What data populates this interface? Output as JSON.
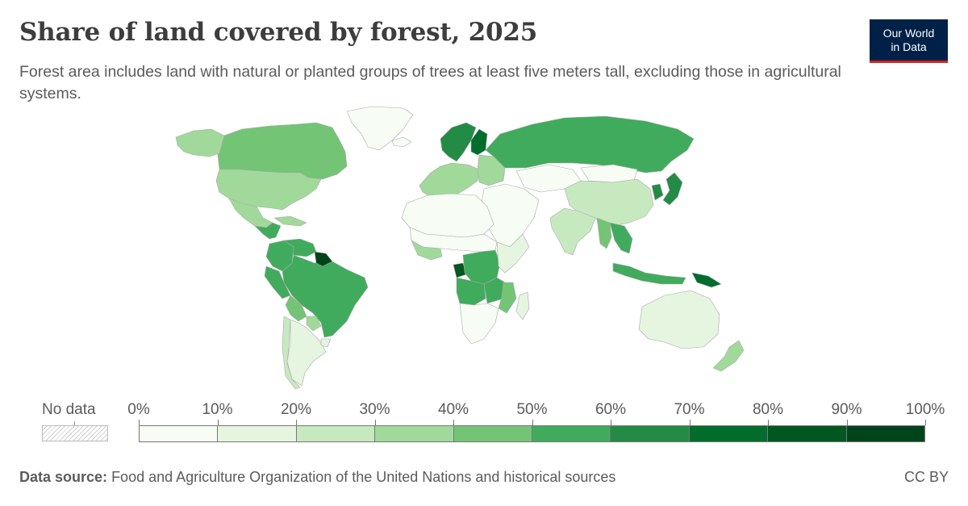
{
  "header": {
    "title": "Share of land covered by forest, 2025",
    "subtitle": "Forest area includes land with natural or planted groups of trees at least five meters tall, excluding those in agricultural systems.",
    "logo_line1": "Our World",
    "logo_line2": "in Data"
  },
  "legend": {
    "no_data_label": "No data",
    "ticks": [
      "0%",
      "10%",
      "20%",
      "30%",
      "40%",
      "50%",
      "60%",
      "70%",
      "80%",
      "90%",
      "100%"
    ],
    "colors": [
      "#f7fcf5",
      "#e5f5e0",
      "#c7e9c0",
      "#a1d99b",
      "#74c476",
      "#41ab5d",
      "#238b45",
      "#006d2c",
      "#00571f",
      "#00441b"
    ]
  },
  "footer": {
    "source_label": "Data source:",
    "source_text": "Food and Agriculture Organization of the United Nations and historical sources",
    "license": "CC BY"
  },
  "map_data": {
    "year": 2025,
    "unit": "%",
    "regions": [
      {
        "name": "Canada",
        "bin": 4
      },
      {
        "name": "Alaska",
        "bin": 3
      },
      {
        "name": "Greenland",
        "bin": 0
      },
      {
        "name": "United States",
        "bin": 3
      },
      {
        "name": "Mexico",
        "bin": 3
      },
      {
        "name": "Central America",
        "bin": 5
      },
      {
        "name": "Caribbean",
        "bin": 3
      },
      {
        "name": "Brazil",
        "bin": 5
      },
      {
        "name": "Guianas",
        "bin": 9
      },
      {
        "name": "Venezuela",
        "bin": 5
      },
      {
        "name": "Colombia",
        "bin": 5
      },
      {
        "name": "Peru",
        "bin": 5
      },
      {
        "name": "Bolivia",
        "bin": 4
      },
      {
        "name": "Paraguay",
        "bin": 3
      },
      {
        "name": "Chile",
        "bin": 2
      },
      {
        "name": "Argentina",
        "bin": 1
      },
      {
        "name": "Uruguay",
        "bin": 1
      },
      {
        "name": "Iceland",
        "bin": 0
      },
      {
        "name": "Scandinavia",
        "bin": 6
      },
      {
        "name": "Finland",
        "bin": 7
      },
      {
        "name": "Western Europe",
        "bin": 3
      },
      {
        "name": "Eastern Europe",
        "bin": 3
      },
      {
        "name": "Russia",
        "bin": 5
      },
      {
        "name": "Central Asia",
        "bin": 0
      },
      {
        "name": "Mongolia",
        "bin": 0
      },
      {
        "name": "China",
        "bin": 2
      },
      {
        "name": "Korea",
        "bin": 6
      },
      {
        "name": "Japan",
        "bin": 6
      },
      {
        "name": "Middle East",
        "bin": 0
      },
      {
        "name": "India",
        "bin": 2
      },
      {
        "name": "Myanmar",
        "bin": 4
      },
      {
        "name": "Southeast Asia",
        "bin": 5
      },
      {
        "name": "Indonesia",
        "bin": 5
      },
      {
        "name": "Papua New Guinea",
        "bin": 7
      },
      {
        "name": "Australia",
        "bin": 1
      },
      {
        "name": "New Zealand",
        "bin": 3
      },
      {
        "name": "North Africa",
        "bin": 0
      },
      {
        "name": "Sahel",
        "bin": 0
      },
      {
        "name": "West Africa coast",
        "bin": 3
      },
      {
        "name": "Gabon",
        "bin": 8
      },
      {
        "name": "Congo basin",
        "bin": 5
      },
      {
        "name": "East Africa",
        "bin": 1
      },
      {
        "name": "Angola",
        "bin": 5
      },
      {
        "name": "Zambia",
        "bin": 5
      },
      {
        "name": "Mozambique",
        "bin": 4
      },
      {
        "name": "Southern Africa",
        "bin": 0
      },
      {
        "name": "Madagascar",
        "bin": 1
      }
    ]
  }
}
